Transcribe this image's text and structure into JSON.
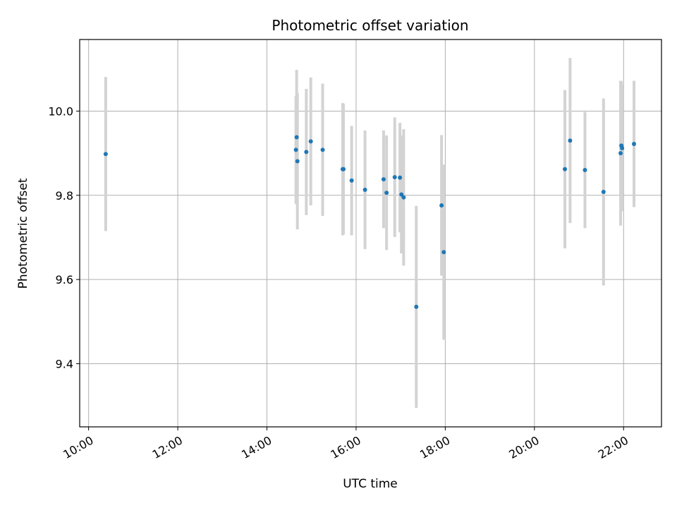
{
  "chart_data": {
    "type": "scatter",
    "title": "Photometric offset variation",
    "xlabel": "UTC time",
    "ylabel": "Photometric offset",
    "xlim_hours": [
      9.8,
      22.85
    ],
    "ylim": [
      9.25,
      10.17
    ],
    "grid": true,
    "x_ticks": [
      {
        "hour": 10,
        "label": "10:00"
      },
      {
        "hour": 12,
        "label": "12:00"
      },
      {
        "hour": 14,
        "label": "14:00"
      },
      {
        "hour": 16,
        "label": "16:00"
      },
      {
        "hour": 18,
        "label": "18:00"
      },
      {
        "hour": 20,
        "label": "20:00"
      },
      {
        "hour": 22,
        "label": "22:00"
      }
    ],
    "y_ticks": [
      {
        "value": 9.4,
        "label": "9.4"
      },
      {
        "value": 9.6,
        "label": "9.6"
      },
      {
        "value": 9.8,
        "label": "9.8"
      },
      {
        "value": 10.0,
        "label": "10.0"
      }
    ],
    "colors": {
      "point": "#1f77b4",
      "errorbar": "#d3d3d3",
      "grid": "#b0b0b0"
    },
    "series": [
      {
        "points": [
          {
            "time": "10:23",
            "y": 9.898,
            "err": 0.183
          },
          {
            "time": "14:39",
            "y": 9.908,
            "err": 0.128
          },
          {
            "time": "14:40",
            "y": 9.938,
            "err": 0.16
          },
          {
            "time": "14:41",
            "y": 9.881,
            "err": 0.162
          },
          {
            "time": "14:53",
            "y": 9.903,
            "err": 0.15
          },
          {
            "time": "14:59",
            "y": 9.928,
            "err": 0.152
          },
          {
            "time": "15:15",
            "y": 9.908,
            "err": 0.157
          },
          {
            "time": "15:42",
            "y": 9.862,
            "err": 0.157
          },
          {
            "time": "15:43",
            "y": 9.862,
            "err": 0.155
          },
          {
            "time": "15:54",
            "y": 9.835,
            "err": 0.13
          },
          {
            "time": "16:12",
            "y": 9.813,
            "err": 0.141
          },
          {
            "time": "16:37",
            "y": 9.838,
            "err": 0.116
          },
          {
            "time": "16:41",
            "y": 9.806,
            "err": 0.136
          },
          {
            "time": "16:52",
            "y": 9.843,
            "err": 0.142
          },
          {
            "time": "16:59",
            "y": 9.842,
            "err": 0.13
          },
          {
            "time": "17:01",
            "y": 9.802,
            "err": 0.14
          },
          {
            "time": "17:04",
            "y": 9.795,
            "err": 0.162
          },
          {
            "time": "17:21",
            "y": 9.535,
            "err": 0.24
          },
          {
            "time": "17:55",
            "y": 9.776,
            "err": 0.167
          },
          {
            "time": "17:58",
            "y": 9.665,
            "err": 0.208
          },
          {
            "time": "20:41",
            "y": 9.862,
            "err": 0.188
          },
          {
            "time": "20:48",
            "y": 9.93,
            "err": 0.196
          },
          {
            "time": "21:08",
            "y": 9.86,
            "err": 0.138
          },
          {
            "time": "21:33",
            "y": 9.808,
            "err": 0.222
          },
          {
            "time": "21:56",
            "y": 9.9,
            "err": 0.172
          },
          {
            "time": "21:57",
            "y": 9.918,
            "err": 0.153
          },
          {
            "time": "21:58",
            "y": 9.912,
            "err": 0.15
          },
          {
            "time": "22:14",
            "y": 9.922,
            "err": 0.15
          }
        ]
      }
    ]
  }
}
